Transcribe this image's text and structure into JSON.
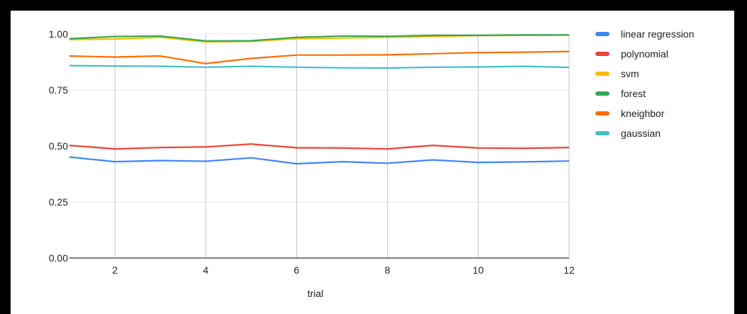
{
  "chart_data": {
    "type": "line",
    "xlabel": "trial",
    "ylabel": "",
    "xlim": [
      1,
      12
    ],
    "ylim": [
      0,
      1
    ],
    "x": [
      1,
      2,
      3,
      4,
      5,
      6,
      7,
      8,
      9,
      10,
      11,
      12
    ],
    "xticks": [
      2,
      4,
      6,
      8,
      10,
      12
    ],
    "yticks": [
      0.0,
      0.25,
      0.5,
      0.75,
      1.0
    ],
    "ytick_labels": [
      "0.00",
      "0.25",
      "0.50",
      "0.75",
      "1.00"
    ],
    "grid": "vertical",
    "legend_position": "right",
    "series": [
      {
        "name": "linear regression",
        "color": "#4285f4",
        "values": [
          0.451,
          0.43,
          0.435,
          0.432,
          0.447,
          0.421,
          0.43,
          0.423,
          0.438,
          0.427,
          0.429,
          0.433
        ]
      },
      {
        "name": "polynomial",
        "color": "#ea4335",
        "values": [
          0.503,
          0.487,
          0.493,
          0.496,
          0.509,
          0.492,
          0.491,
          0.487,
          0.503,
          0.491,
          0.49,
          0.493
        ]
      },
      {
        "name": "svm",
        "color": "#fbbc04",
        "values": [
          0.975,
          0.978,
          0.985,
          0.965,
          0.967,
          0.979,
          0.982,
          0.985,
          0.989,
          0.993,
          0.994,
          0.995
        ]
      },
      {
        "name": "forest",
        "color": "#34a853",
        "values": [
          0.979,
          0.989,
          0.991,
          0.969,
          0.97,
          0.985,
          0.991,
          0.99,
          0.994,
          0.994,
          0.996,
          0.996
        ]
      },
      {
        "name": "kneighbor",
        "color": "#ff6d01",
        "values": [
          0.902,
          0.897,
          0.902,
          0.868,
          0.891,
          0.906,
          0.906,
          0.907,
          0.912,
          0.917,
          0.919,
          0.922
        ]
      },
      {
        "name": "gaussian",
        "color": "#46bdc6",
        "values": [
          0.859,
          0.857,
          0.856,
          0.852,
          0.856,
          0.852,
          0.849,
          0.848,
          0.852,
          0.853,
          0.856,
          0.851
        ]
      }
    ]
  }
}
